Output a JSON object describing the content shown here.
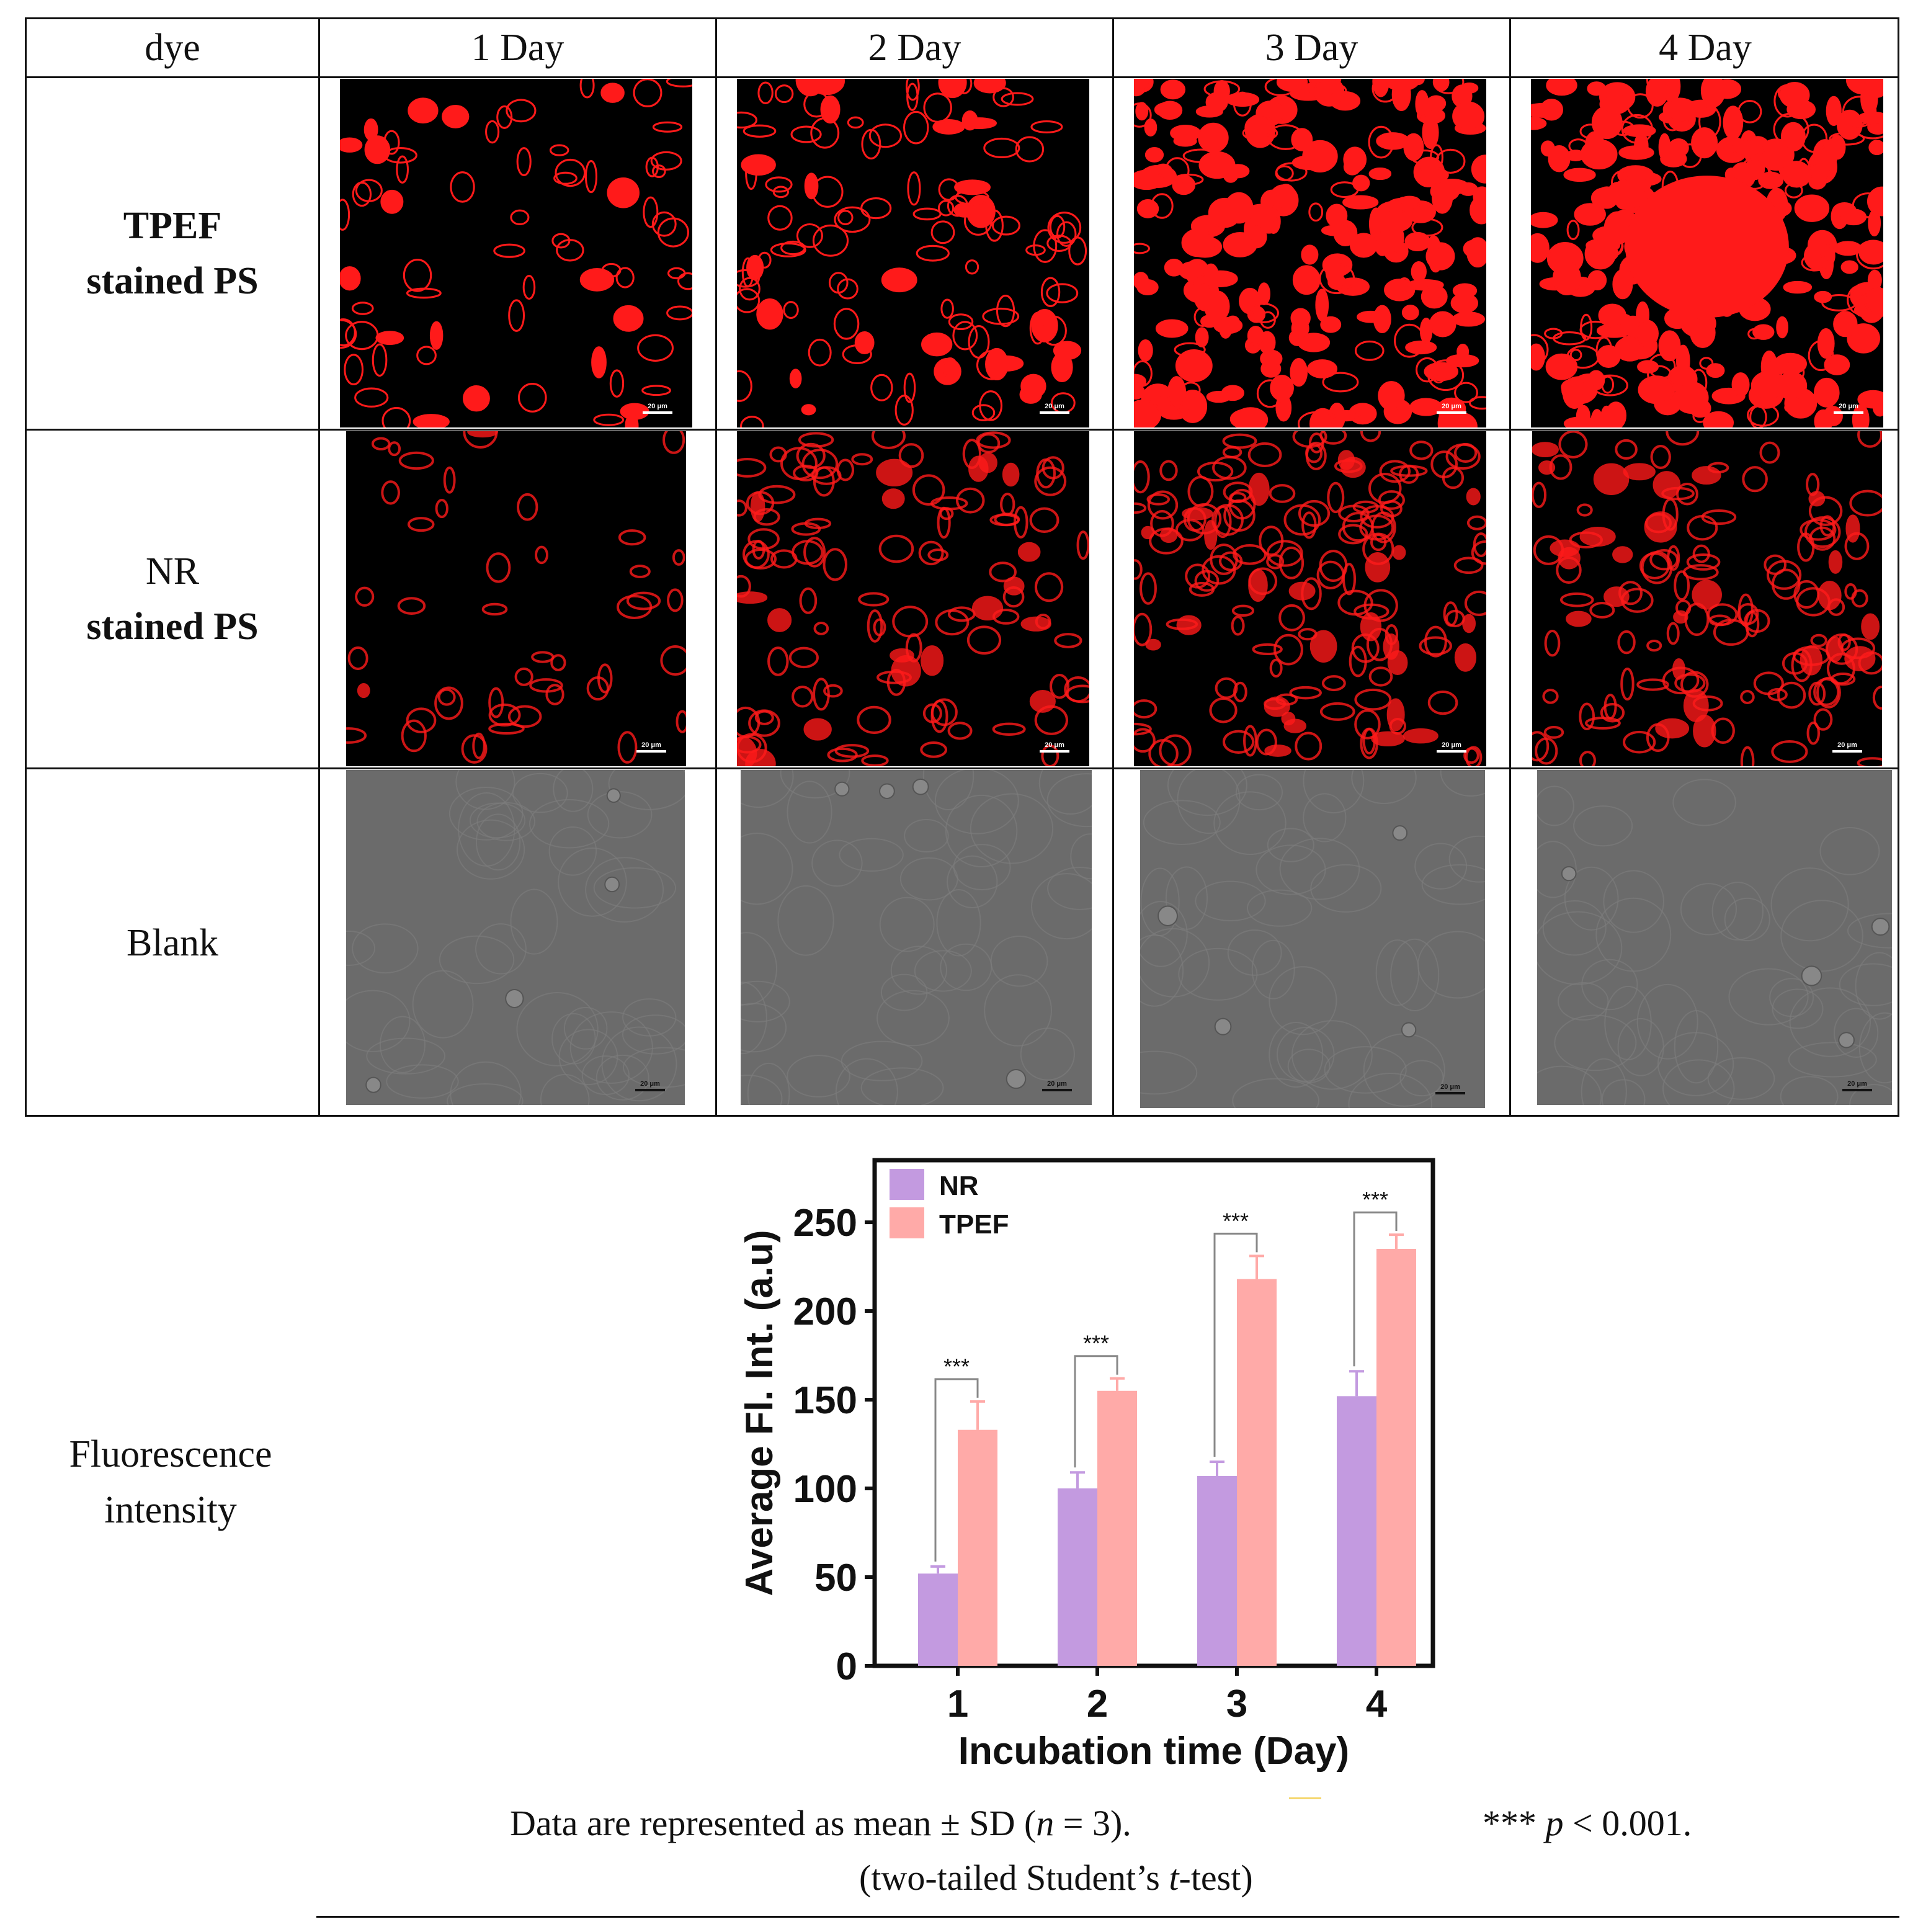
{
  "table": {
    "header": [
      "dye",
      "1 Day",
      "2 Day",
      "3 Day",
      "4 Day"
    ],
    "rows": [
      {
        "label_line1": "TPEF",
        "label_line2": "stained PS",
        "bold": true
      },
      {
        "label_line1": "NR",
        "label_line2": "stained PS",
        "bold": false
      },
      {
        "label_line1": "Blank",
        "label_line2": "",
        "bold": false
      }
    ],
    "scale_bar": "20 μm",
    "fluorescence_label_line1": "Fluorescence",
    "fluorescence_label_line2": "intensity"
  },
  "colors": {
    "fluorescence": "#ff1a1a",
    "nr_bar": "#c39ae0",
    "tpef_bar": "#ffaaa8",
    "blank_bg": "#6b6b6b"
  },
  "chart_data": {
    "type": "bar",
    "xlabel": "Incubation time (Day)",
    "ylabel": "Average Fl. Int. (a.u)",
    "categories": [
      "1",
      "2",
      "3",
      "4"
    ],
    "ylim": [
      0,
      285
    ],
    "yticks": [
      0,
      50,
      100,
      150,
      200,
      250
    ],
    "series": [
      {
        "name": "NR",
        "values": [
          52,
          100,
          107,
          152
        ],
        "errors": [
          4,
          9,
          8,
          14
        ]
      },
      {
        "name": "TPEF",
        "values": [
          133,
          155,
          218,
          235
        ],
        "errors": [
          16,
          7,
          13,
          8
        ]
      }
    ],
    "significance": [
      "***",
      "***",
      "***",
      "***"
    ],
    "legend": "top-left"
  },
  "notes": {
    "line1_left": "Data are represented as mean ± SD (",
    "n_symbol": "n",
    "line1_mid": " = 3).",
    "line1_right_stars": "***",
    "p_symbol": "p",
    "line1_right_tail": " < 0.001.",
    "line2_head": "(two-tailed Student’s ",
    "t_symbol": "t",
    "line2_tail": "-test)"
  }
}
